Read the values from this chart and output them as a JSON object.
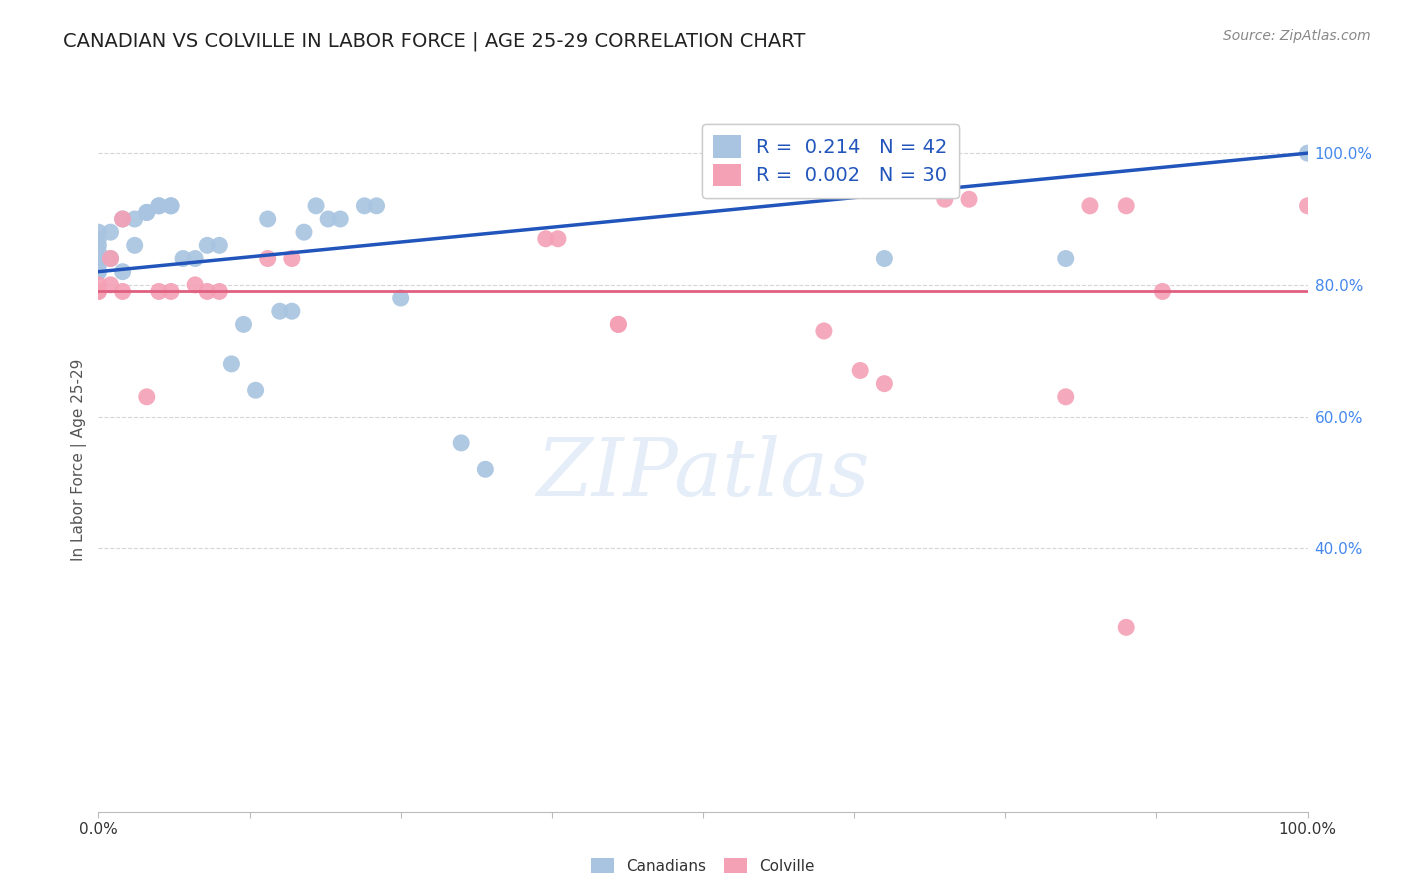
{
  "title": "CANADIAN VS COLVILLE IN LABOR FORCE | AGE 25-29 CORRELATION CHART",
  "source": "Source: ZipAtlas.com",
  "ylabel": "In Labor Force | Age 25-29",
  "canadian_color": "#a8c4e0",
  "colville_color": "#f4a0b5",
  "trend_blue": "#2255bb",
  "trend_pink": "#e06080",
  "canadians_x": [
    0.0,
    0.0,
    0.0,
    0.0,
    0.0,
    0.0,
    0.0,
    0.0,
    0.01,
    0.01,
    0.02,
    0.02,
    0.03,
    0.03,
    0.04,
    0.04,
    0.05,
    0.05,
    0.06,
    0.06,
    0.07,
    0.08,
    0.09,
    0.1,
    0.11,
    0.12,
    0.13,
    0.14,
    0.15,
    0.16,
    0.17,
    0.18,
    0.19,
    0.2,
    0.22,
    0.23,
    0.25,
    0.3,
    0.32,
    0.65,
    0.8,
    1.0
  ],
  "canadians_y": [
    0.82,
    0.82,
    0.83,
    0.84,
    0.85,
    0.86,
    0.87,
    0.88,
    0.84,
    0.88,
    0.82,
    0.9,
    0.86,
    0.9,
    0.91,
    0.91,
    0.92,
    0.92,
    0.92,
    0.92,
    0.84,
    0.84,
    0.86,
    0.86,
    0.68,
    0.74,
    0.64,
    0.9,
    0.76,
    0.76,
    0.88,
    0.92,
    0.9,
    0.9,
    0.92,
    0.92,
    0.78,
    0.56,
    0.52,
    0.84,
    0.84,
    1.0
  ],
  "colville_x": [
    0.0,
    0.0,
    0.0,
    0.01,
    0.01,
    0.02,
    0.02,
    0.04,
    0.05,
    0.06,
    0.08,
    0.09,
    0.1,
    0.14,
    0.16,
    0.37,
    0.38,
    0.43,
    0.43,
    0.6,
    0.63,
    0.65,
    0.7,
    0.72,
    0.8,
    0.82,
    0.85,
    0.85,
    0.88,
    1.0
  ],
  "colville_y": [
    0.79,
    0.79,
    0.8,
    0.8,
    0.84,
    0.79,
    0.9,
    0.63,
    0.79,
    0.79,
    0.8,
    0.79,
    0.79,
    0.84,
    0.84,
    0.87,
    0.87,
    0.74,
    0.74,
    0.73,
    0.67,
    0.65,
    0.93,
    0.93,
    0.63,
    0.92,
    0.92,
    0.28,
    0.79,
    0.92
  ],
  "blue_trend_x0": 0.0,
  "blue_trend_y0": 0.82,
  "blue_trend_x1": 1.0,
  "blue_trend_y1": 1.0,
  "pink_trend_y": 0.79,
  "xlim": [
    0.0,
    1.0
  ],
  "ylim": [
    0.0,
    1.07
  ],
  "yticks": [
    0.4,
    0.6,
    0.8,
    1.0
  ],
  "ytick_labels": [
    "40.0%",
    "60.0%",
    "80.0%",
    "100.0%"
  ],
  "xticks": [
    0.0,
    0.125,
    0.25,
    0.375,
    0.5,
    0.625,
    0.75,
    0.875,
    1.0
  ],
  "xtick_labels": [
    "0.0%",
    "",
    "",
    "",
    "",
    "",
    "",
    "",
    "100.0%"
  ],
  "grid_color": "#cccccc",
  "background_color": "#ffffff",
  "title_fontsize": 14,
  "source_fontsize": 10,
  "axis_label_fontsize": 11,
  "tick_fontsize": 11,
  "legend_R_blue": "R =  0.214",
  "legend_N_blue": "N = 42",
  "legend_R_pink": "R =  0.002",
  "legend_N_pink": "N = 30"
}
